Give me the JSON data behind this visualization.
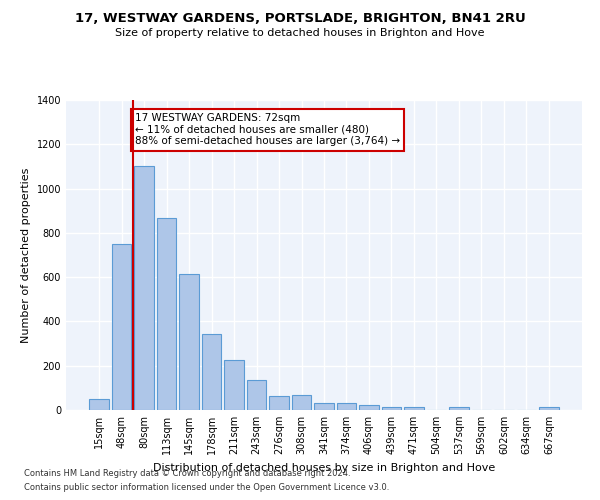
{
  "title": "17, WESTWAY GARDENS, PORTSLADE, BRIGHTON, BN41 2RU",
  "subtitle": "Size of property relative to detached houses in Brighton and Hove",
  "xlabel": "Distribution of detached houses by size in Brighton and Hove",
  "ylabel": "Number of detached properties",
  "footer1": "Contains HM Land Registry data © Crown copyright and database right 2024.",
  "footer2": "Contains public sector information licensed under the Open Government Licence v3.0.",
  "bar_labels": [
    "15sqm",
    "48sqm",
    "80sqm",
    "113sqm",
    "145sqm",
    "178sqm",
    "211sqm",
    "243sqm",
    "276sqm",
    "308sqm",
    "341sqm",
    "374sqm",
    "406sqm",
    "439sqm",
    "471sqm",
    "504sqm",
    "537sqm",
    "569sqm",
    "602sqm",
    "634sqm",
    "667sqm"
  ],
  "bar_values": [
    50,
    750,
    1100,
    865,
    615,
    345,
    225,
    135,
    65,
    70,
    30,
    30,
    22,
    15,
    15,
    0,
    12,
    0,
    0,
    0,
    12
  ],
  "bar_color": "#aec6e8",
  "bar_edgecolor": "#5b9bd5",
  "background_color": "#eef3fb",
  "grid_color": "#ffffff",
  "annotation_text": "17 WESTWAY GARDENS: 72sqm\n← 11% of detached houses are smaller (480)\n88% of semi-detached houses are larger (3,764) →",
  "vline_x": 1.5,
  "vline_color": "#cc0000",
  "ylim": [
    0,
    1400
  ],
  "yticks": [
    0,
    200,
    400,
    600,
    800,
    1000,
    1200,
    1400
  ]
}
